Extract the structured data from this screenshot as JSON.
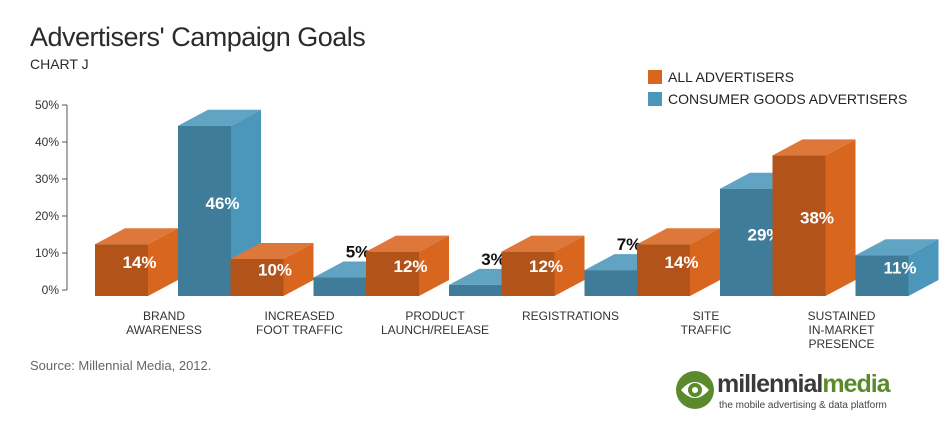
{
  "chart_data": {
    "type": "bar",
    "title": "Advertisers' Campaign Goals",
    "subtitle": "CHART J",
    "categories": [
      [
        "BRAND",
        "AWARENESS"
      ],
      [
        "INCREASED",
        "FOOT TRAFFIC"
      ],
      [
        "PRODUCT",
        "LAUNCH/RELEASE"
      ],
      [
        "REGISTRATIONS"
      ],
      [
        "SITE",
        "TRAFFIC"
      ],
      [
        "SUSTAINED",
        "IN-MARKET",
        "PRESENCE"
      ]
    ],
    "series": [
      {
        "name": "ALL ADVERTISERS",
        "color": "#d9661f",
        "values": [
          14,
          10,
          12,
          12,
          14,
          38
        ],
        "labels": [
          "14%",
          "10%",
          "12%",
          "12%",
          "14%",
          "38%"
        ]
      },
      {
        "name": "CONSUMER GOODS ADVERTISERS",
        "color": "#4b97bb",
        "values": [
          46,
          5,
          3,
          7,
          29,
          11
        ],
        "labels": [
          "46%",
          "5%",
          "3%",
          "7%",
          "29%",
          "11%"
        ]
      }
    ],
    "ylim": [
      0,
      50
    ],
    "yticks": [
      0,
      10,
      20,
      30,
      40,
      50
    ],
    "ytick_labels": [
      "0%",
      "10%",
      "20%",
      "30%",
      "40%",
      "50%"
    ],
    "legend_position": "top-right"
  },
  "source": "Source: Millennial Media, 2012.",
  "logo": {
    "name_part1": "millennial",
    "name_part2": "media",
    "tagline": "the mobile advertising & data platform"
  }
}
